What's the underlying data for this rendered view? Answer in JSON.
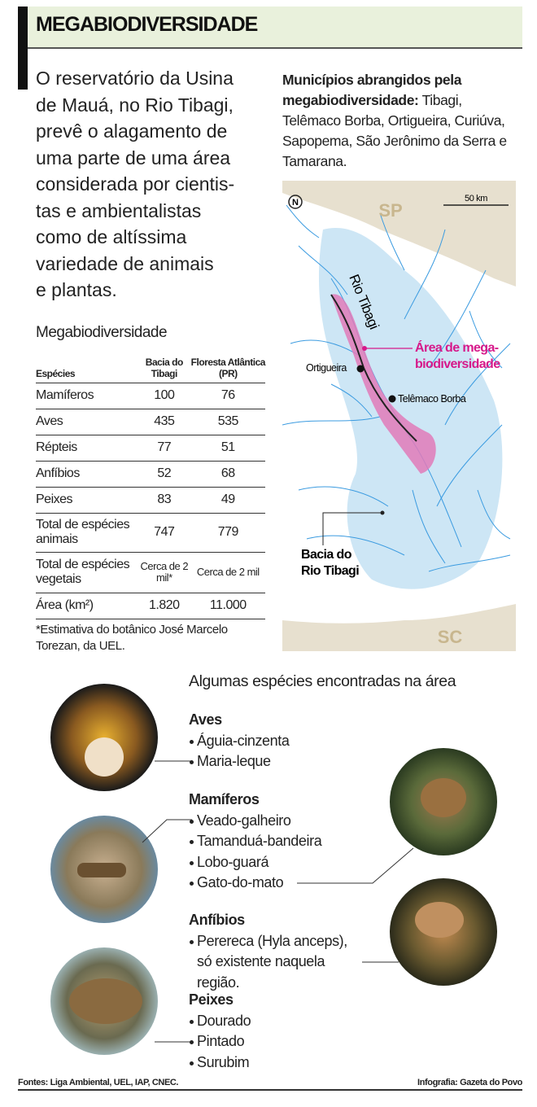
{
  "header": {
    "title": "MEGABIODIVERSIDADE"
  },
  "intro": {
    "lines": [
      "O reservatório da Usina",
      "de Mauá, no Rio Tibagi,",
      "prevê o alagamento de",
      "uma parte de uma área",
      "considerada por cientis-",
      "tas e ambientalistas",
      "como de altíssima",
      "variedade de animais",
      "e plantas."
    ]
  },
  "municipios": {
    "label": "Municípios abrangidos pela megabiodiversidade:",
    "text": "Tibagi, Telêmaco Borba, Ortigueira, Curiúva, Sapopema, São Jerônimo da Serra e Tamarana."
  },
  "table": {
    "title": "Megabiodiversidade",
    "header": [
      "Espécies",
      "Bacia do Tibagi",
      "Floresta Atlântica (PR)"
    ],
    "rows": [
      [
        "Mamíferos",
        "100",
        "76"
      ],
      [
        "Aves",
        "435",
        "535"
      ],
      [
        "Répteis",
        "77",
        "51"
      ],
      [
        "Anfíbios",
        "52",
        "68"
      ],
      [
        "Peixes",
        "83",
        "49"
      ],
      [
        "Total de espécies animais",
        "747",
        "779"
      ],
      [
        "Total de espécies vegetais",
        "Cerca de 2 mil*",
        "Cerca de 2 mil"
      ],
      [
        "Área (km²)",
        "1.820",
        "11.000"
      ]
    ],
    "footnote": "*Estimativa do botânico José Marcelo Torezan, da UEL."
  },
  "map": {
    "north": "N",
    "scale": "50 km",
    "sp": "SP",
    "sc": "SC",
    "river": "Rio Tibagi",
    "area": [
      "Área de mega-",
      "biodiversidade"
    ],
    "ortigueira": "Ortigueira",
    "telemaco": "Telêmaco Borba",
    "basin": [
      "Bacia do",
      "Rio Tibagi"
    ]
  },
  "species": {
    "title": "Algumas espécies encontradas na área",
    "groups": [
      {
        "name": "Aves",
        "items": [
          "Águia-cinzenta",
          "Maria-leque"
        ]
      },
      {
        "name": "Mamíferos",
        "items": [
          "Veado-galheiro",
          "Tamanduá-bandeira",
          "Lobo-guará",
          "Gato-do-mato"
        ]
      },
      {
        "name": "Anfíbios",
        "items": [
          "Perereca (Hyla anceps), só existente naquela região."
        ]
      },
      {
        "name": "Peixes",
        "items": [
          "Dourado",
          "Pintado",
          "Surubim"
        ]
      }
    ]
  },
  "footer": {
    "sources": "Fontes: Liga Ambiental, UEL, IAP, CNEC.",
    "credit": "Infografia: Gazeta do Povo"
  }
}
